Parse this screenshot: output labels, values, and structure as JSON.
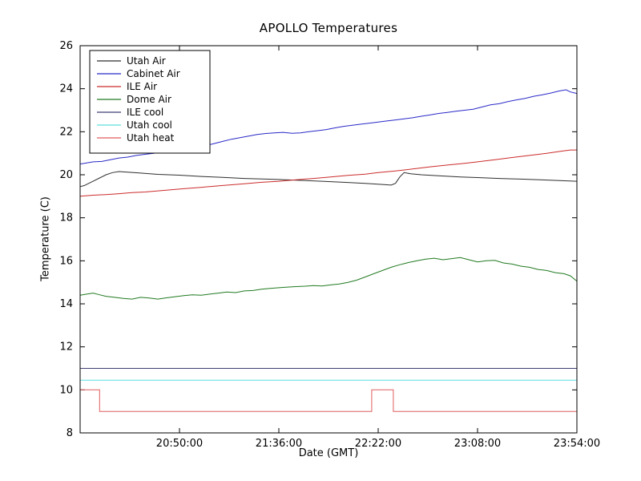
{
  "chart_data": {
    "type": "line",
    "title": "APOLLO Temperatures",
    "xlabel": "Date (GMT)",
    "ylabel": "Temperature (C)",
    "x_unit": "minutes since 00:00 GMT",
    "xlim": [
      1204,
      1434
    ],
    "ylim": [
      8,
      26
    ],
    "yticks": [
      8,
      10,
      12,
      14,
      16,
      18,
      20,
      22,
      24,
      26
    ],
    "xticks": [
      {
        "t": 1250,
        "label": "20:50:00"
      },
      {
        "t": 1296,
        "label": "21:36:00"
      },
      {
        "t": 1342,
        "label": "22:22:00"
      },
      {
        "t": 1388,
        "label": "23:08:00"
      },
      {
        "t": 1434,
        "label": "23:54:00"
      }
    ],
    "grid": false,
    "legend_position": "upper left",
    "background": "#ffffff",
    "axes_color": "#000000",
    "series": [
      {
        "name": "Utah Air",
        "color": "#2e2e2e",
        "points": [
          [
            1204,
            19.45
          ],
          [
            1206,
            19.5
          ],
          [
            1208,
            19.6
          ],
          [
            1210,
            19.7
          ],
          [
            1213,
            19.85
          ],
          [
            1216,
            20.0
          ],
          [
            1219,
            20.1
          ],
          [
            1222,
            20.15
          ],
          [
            1226,
            20.12
          ],
          [
            1232,
            20.08
          ],
          [
            1240,
            20.02
          ],
          [
            1250,
            19.98
          ],
          [
            1260,
            19.92
          ],
          [
            1270,
            19.88
          ],
          [
            1280,
            19.83
          ],
          [
            1290,
            19.8
          ],
          [
            1296,
            19.78
          ],
          [
            1306,
            19.74
          ],
          [
            1316,
            19.7
          ],
          [
            1326,
            19.65
          ],
          [
            1336,
            19.6
          ],
          [
            1344,
            19.55
          ],
          [
            1348,
            19.52
          ],
          [
            1350,
            19.6
          ],
          [
            1352,
            19.9
          ],
          [
            1354,
            20.1
          ],
          [
            1357,
            20.05
          ],
          [
            1362,
            20.0
          ],
          [
            1370,
            19.95
          ],
          [
            1380,
            19.9
          ],
          [
            1388,
            19.87
          ],
          [
            1398,
            19.83
          ],
          [
            1408,
            19.8
          ],
          [
            1418,
            19.76
          ],
          [
            1426,
            19.73
          ],
          [
            1434,
            19.7
          ]
        ]
      },
      {
        "name": "Cabinet Air",
        "color": "#2929c8",
        "points": [
          [
            1204,
            20.5
          ],
          [
            1207,
            20.55
          ],
          [
            1210,
            20.6
          ],
          [
            1214,
            20.62
          ],
          [
            1218,
            20.7
          ],
          [
            1222,
            20.78
          ],
          [
            1226,
            20.82
          ],
          [
            1230,
            20.9
          ],
          [
            1234,
            20.95
          ],
          [
            1238,
            21.0
          ],
          [
            1242,
            21.05
          ],
          [
            1246,
            21.1
          ],
          [
            1250,
            21.15
          ],
          [
            1254,
            21.2
          ],
          [
            1258,
            21.28
          ],
          [
            1262,
            21.35
          ],
          [
            1266,
            21.45
          ],
          [
            1270,
            21.55
          ],
          [
            1274,
            21.65
          ],
          [
            1278,
            21.72
          ],
          [
            1282,
            21.8
          ],
          [
            1286,
            21.87
          ],
          [
            1290,
            21.92
          ],
          [
            1294,
            21.95
          ],
          [
            1298,
            21.97
          ],
          [
            1302,
            21.93
          ],
          [
            1306,
            21.95
          ],
          [
            1310,
            22.0
          ],
          [
            1314,
            22.05
          ],
          [
            1318,
            22.1
          ],
          [
            1322,
            22.18
          ],
          [
            1326,
            22.25
          ],
          [
            1330,
            22.3
          ],
          [
            1334,
            22.35
          ],
          [
            1338,
            22.4
          ],
          [
            1342,
            22.45
          ],
          [
            1346,
            22.5
          ],
          [
            1350,
            22.55
          ],
          [
            1354,
            22.6
          ],
          [
            1358,
            22.65
          ],
          [
            1362,
            22.72
          ],
          [
            1366,
            22.78
          ],
          [
            1370,
            22.85
          ],
          [
            1374,
            22.9
          ],
          [
            1378,
            22.95
          ],
          [
            1382,
            23.0
          ],
          [
            1386,
            23.05
          ],
          [
            1390,
            23.15
          ],
          [
            1394,
            23.25
          ],
          [
            1398,
            23.3
          ],
          [
            1402,
            23.4
          ],
          [
            1406,
            23.48
          ],
          [
            1410,
            23.55
          ],
          [
            1414,
            23.65
          ],
          [
            1418,
            23.72
          ],
          [
            1422,
            23.8
          ],
          [
            1426,
            23.9
          ],
          [
            1429,
            23.95
          ],
          [
            1431,
            23.85
          ],
          [
            1434,
            23.78
          ]
        ]
      },
      {
        "name": "ILE Air",
        "color": "#cc2b2b",
        "points": [
          [
            1204,
            19.0
          ],
          [
            1210,
            19.05
          ],
          [
            1216,
            19.08
          ],
          [
            1222,
            19.12
          ],
          [
            1228,
            19.17
          ],
          [
            1234,
            19.2
          ],
          [
            1240,
            19.25
          ],
          [
            1246,
            19.3
          ],
          [
            1252,
            19.35
          ],
          [
            1258,
            19.4
          ],
          [
            1264,
            19.45
          ],
          [
            1270,
            19.5
          ],
          [
            1276,
            19.55
          ],
          [
            1282,
            19.6
          ],
          [
            1288,
            19.65
          ],
          [
            1296,
            19.7
          ],
          [
            1304,
            19.77
          ],
          [
            1312,
            19.83
          ],
          [
            1320,
            19.9
          ],
          [
            1328,
            19.97
          ],
          [
            1336,
            20.03
          ],
          [
            1342,
            20.1
          ],
          [
            1350,
            20.18
          ],
          [
            1358,
            20.27
          ],
          [
            1366,
            20.37
          ],
          [
            1374,
            20.45
          ],
          [
            1382,
            20.53
          ],
          [
            1388,
            20.6
          ],
          [
            1396,
            20.7
          ],
          [
            1404,
            20.8
          ],
          [
            1412,
            20.9
          ],
          [
            1420,
            21.0
          ],
          [
            1427,
            21.1
          ],
          [
            1431,
            21.15
          ],
          [
            1434,
            21.15
          ]
        ]
      },
      {
        "name": "Dome Air",
        "color": "#217a21",
        "points": [
          [
            1204,
            14.4
          ],
          [
            1207,
            14.45
          ],
          [
            1210,
            14.5
          ],
          [
            1213,
            14.42
          ],
          [
            1216,
            14.35
          ],
          [
            1220,
            14.3
          ],
          [
            1224,
            14.25
          ],
          [
            1228,
            14.22
          ],
          [
            1232,
            14.3
          ],
          [
            1236,
            14.27
          ],
          [
            1240,
            14.22
          ],
          [
            1244,
            14.28
          ],
          [
            1248,
            14.33
          ],
          [
            1252,
            14.38
          ],
          [
            1256,
            14.42
          ],
          [
            1260,
            14.4
          ],
          [
            1264,
            14.45
          ],
          [
            1268,
            14.5
          ],
          [
            1272,
            14.55
          ],
          [
            1276,
            14.52
          ],
          [
            1280,
            14.6
          ],
          [
            1284,
            14.62
          ],
          [
            1288,
            14.68
          ],
          [
            1292,
            14.72
          ],
          [
            1296,
            14.75
          ],
          [
            1300,
            14.78
          ],
          [
            1304,
            14.8
          ],
          [
            1308,
            14.82
          ],
          [
            1312,
            14.85
          ],
          [
            1316,
            14.83
          ],
          [
            1320,
            14.88
          ],
          [
            1324,
            14.92
          ],
          [
            1328,
            15.0
          ],
          [
            1332,
            15.1
          ],
          [
            1336,
            15.25
          ],
          [
            1340,
            15.4
          ],
          [
            1344,
            15.55
          ],
          [
            1348,
            15.7
          ],
          [
            1352,
            15.82
          ],
          [
            1356,
            15.92
          ],
          [
            1360,
            16.0
          ],
          [
            1364,
            16.08
          ],
          [
            1368,
            16.12
          ],
          [
            1372,
            16.05
          ],
          [
            1376,
            16.1
          ],
          [
            1380,
            16.15
          ],
          [
            1384,
            16.05
          ],
          [
            1388,
            15.95
          ],
          [
            1392,
            16.0
          ],
          [
            1396,
            16.02
          ],
          [
            1400,
            15.9
          ],
          [
            1404,
            15.85
          ],
          [
            1408,
            15.75
          ],
          [
            1412,
            15.7
          ],
          [
            1416,
            15.6
          ],
          [
            1420,
            15.55
          ],
          [
            1424,
            15.45
          ],
          [
            1428,
            15.4
          ],
          [
            1431,
            15.3
          ],
          [
            1434,
            15.05
          ]
        ]
      },
      {
        "name": "ILE cool",
        "color": "#3f3f75",
        "points": [
          [
            1204,
            11.0
          ],
          [
            1434,
            11.0
          ]
        ]
      },
      {
        "name": "Utah cool",
        "color": "#5fdddd",
        "points": [
          [
            1204,
            10.45
          ],
          [
            1434,
            10.45
          ]
        ]
      },
      {
        "name": "Utah heat",
        "color": "#e05c5c",
        "points": [
          [
            1204,
            10.0
          ],
          [
            1213,
            10.0
          ],
          [
            1213,
            9.0
          ],
          [
            1339,
            9.0
          ],
          [
            1339,
            10.0
          ],
          [
            1349,
            10.0
          ],
          [
            1349,
            9.0
          ],
          [
            1434,
            9.0
          ]
        ]
      }
    ]
  }
}
